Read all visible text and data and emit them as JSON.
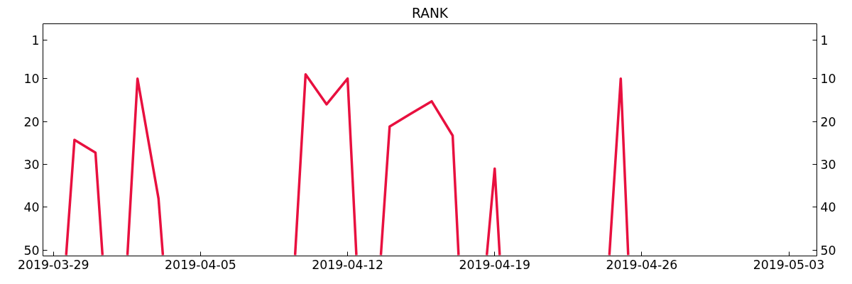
{
  "chart_data": {
    "type": "line",
    "title": "RANK",
    "x": [
      "2019-03-29T14:30",
      "2019-03-30",
      "2019-03-31",
      "2019-03-31T08:00",
      "2019-04-01",
      "2019-04-01T12:30",
      "2019-04-02",
      "2019-04-03",
      "2019-04-03T05:00",
      "2019-04-06",
      "2019-04-09T12:00",
      "2019-04-10",
      "2019-04-11",
      "2019-04-12",
      "2019-04-12T10:00",
      "2019-04-13",
      "2019-04-13T14:00",
      "2019-04-14",
      "2019-04-15",
      "2019-04-16",
      "2019-04-17",
      "2019-04-17T06:45",
      "2019-04-18",
      "2019-04-18T15:00",
      "2019-04-19",
      "2019-04-19T05:45",
      "2019-04-22",
      "2019-04-24T11:00",
      "2019-04-25",
      "2019-04-25T08:30"
    ],
    "series": [
      {
        "color": "#e8103f",
        "values": [
          51.2,
          24.3,
          27.3,
          51.2,
          null,
          51.2,
          10,
          38,
          51.2,
          null,
          51.2,
          9,
          16,
          10,
          51.2,
          null,
          51.2,
          21.2,
          18.2,
          15.3,
          23.3,
          51.2,
          null,
          51.2,
          31,
          51.2,
          null,
          51.2,
          10,
          51.2
        ]
      }
    ],
    "xlim": [
      "2019-03-28T12:00",
      "2019-05-04T08:00"
    ],
    "xticks": [
      {
        "value": "2019-03-29",
        "label": "2019-03-29"
      },
      {
        "value": "2019-04-05",
        "label": "2019-04-05"
      },
      {
        "value": "2019-04-12",
        "label": "2019-04-12"
      },
      {
        "value": "2019-04-19",
        "label": "2019-04-19"
      },
      {
        "value": "2019-04-26",
        "label": "2019-04-26"
      },
      {
        "value": "2019-05-03",
        "label": "2019-05-03"
      }
    ],
    "ylim": [
      51.4,
      -2.8
    ],
    "yticks": [
      1,
      10,
      20,
      30,
      40,
      50
    ],
    "y2lim": [
      51.4,
      -2.8
    ],
    "y2ticks": [
      1,
      10,
      20,
      30,
      40,
      50
    ],
    "grid": false,
    "marker": "none",
    "line_style": "solid"
  }
}
